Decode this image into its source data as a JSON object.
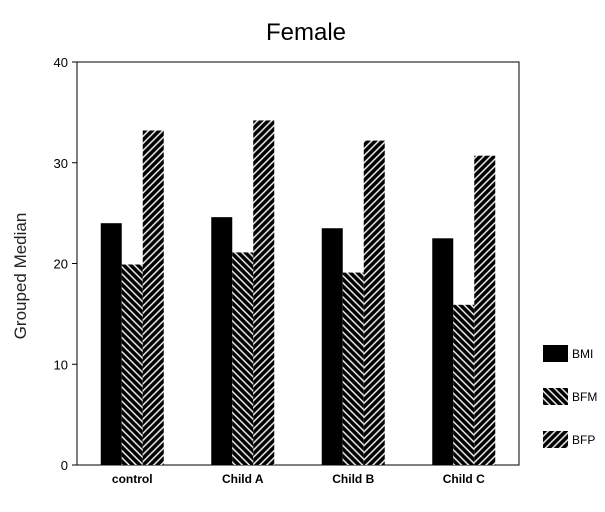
{
  "chart_data": {
    "type": "bar",
    "title": "Female",
    "xlabel": "",
    "ylabel": "Grouped Median",
    "ylim": [
      0,
      40
    ],
    "yticks": [
      0,
      10,
      20,
      30,
      40
    ],
    "categories": [
      "control",
      "Child A",
      "Child B",
      "Child C"
    ],
    "series": [
      {
        "name": "BMI",
        "values": [
          24.0,
          24.6,
          23.5,
          22.5
        ],
        "fill": "solid"
      },
      {
        "name": "BFM",
        "values": [
          19.9,
          21.1,
          19.1,
          15.9
        ],
        "fill": "hatch-backslash"
      },
      {
        "name": "BFP",
        "values": [
          33.2,
          34.2,
          32.2,
          30.7
        ],
        "fill": "hatch-slash"
      }
    ],
    "legend_position": "right",
    "grid": false
  },
  "colors": {
    "bar": "#000000",
    "background": "#ffffff",
    "axis": "#000000"
  }
}
